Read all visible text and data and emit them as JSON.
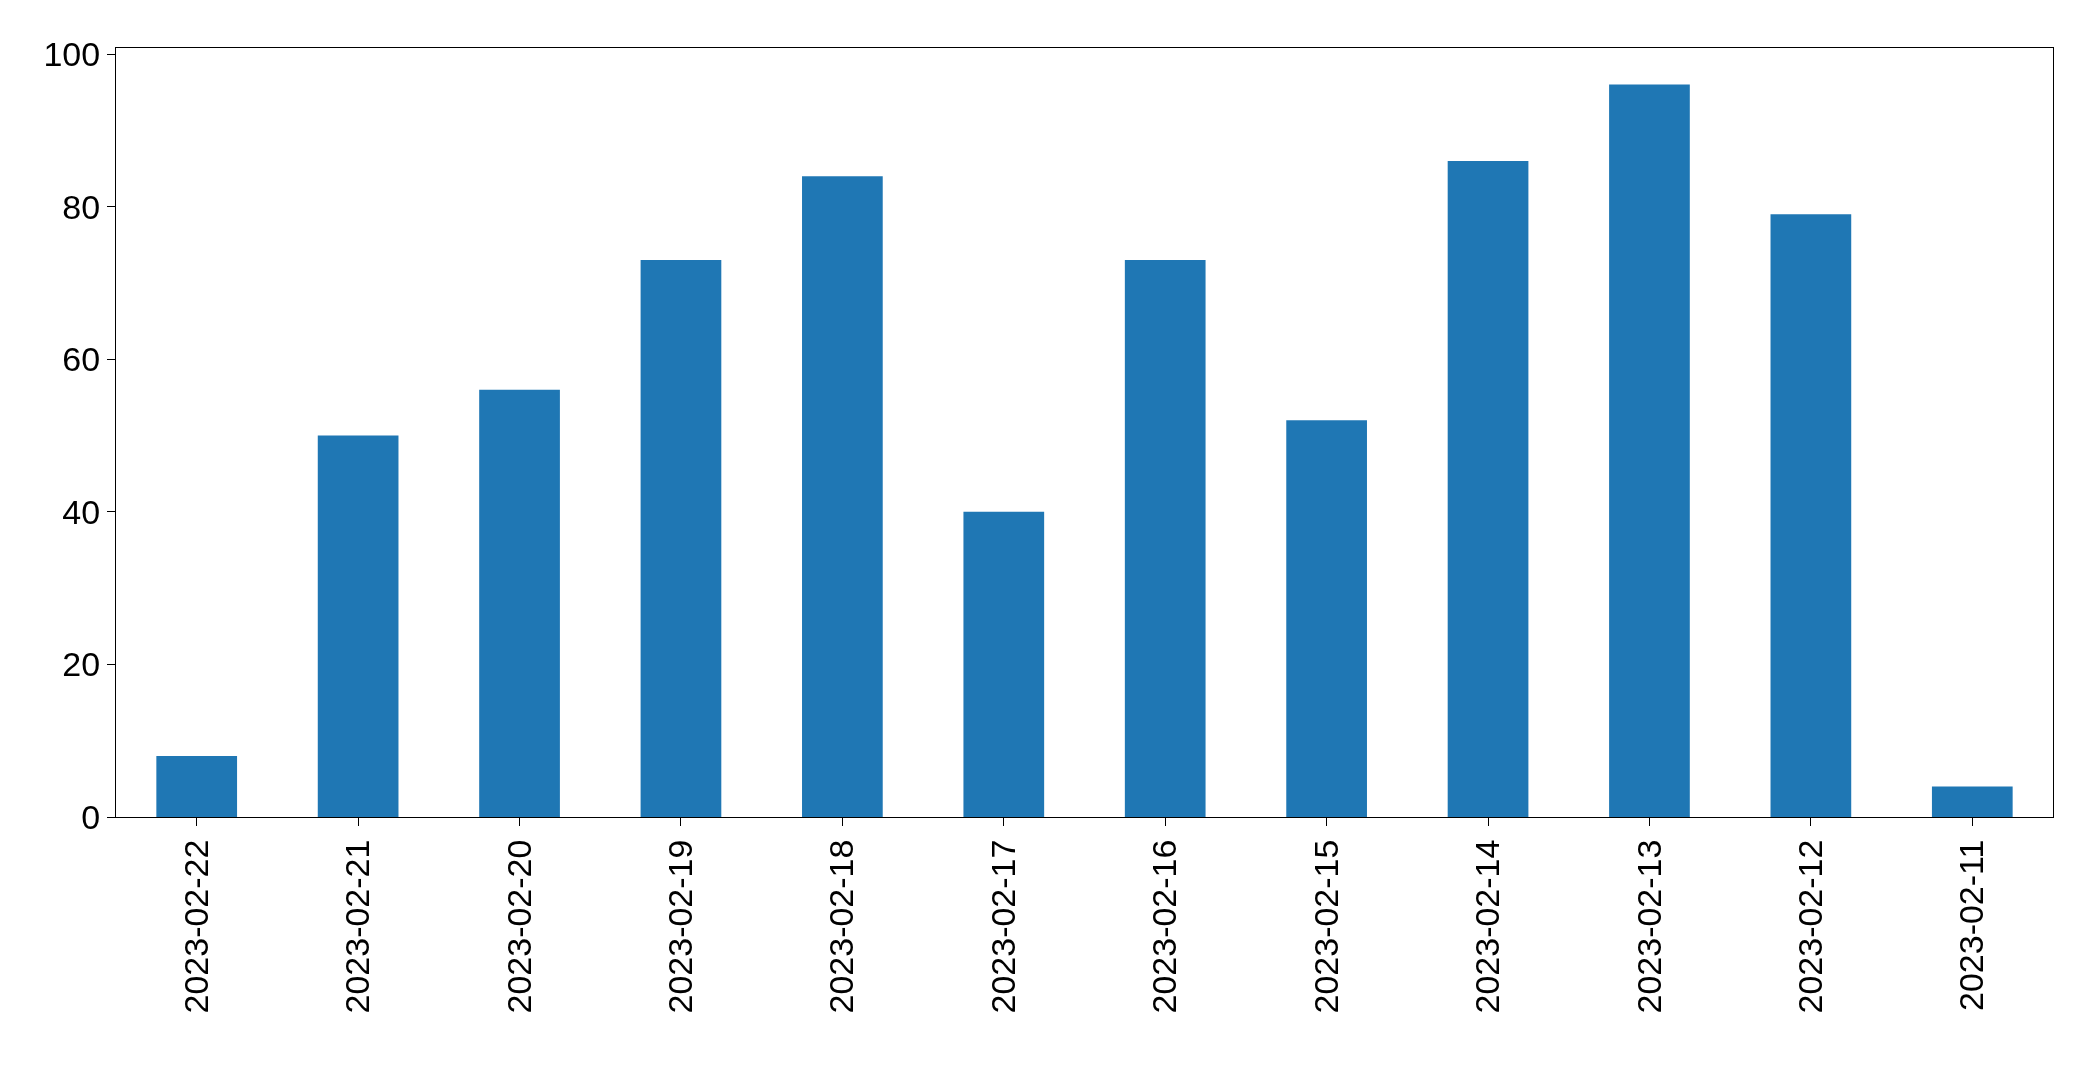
{
  "chart_data": {
    "type": "bar",
    "categories": [
      "2023-02-22",
      "2023-02-21",
      "2023-02-20",
      "2023-02-19",
      "2023-02-18",
      "2023-02-17",
      "2023-02-16",
      "2023-02-15",
      "2023-02-14",
      "2023-02-13",
      "2023-02-12",
      "2023-02-11"
    ],
    "values": [
      8,
      50,
      56,
      73,
      84,
      40,
      73,
      52,
      86,
      96,
      79,
      4
    ],
    "color": "#1f77b4",
    "ylim": [
      0,
      100.8
    ],
    "yticks": [
      0,
      20,
      40,
      60,
      80,
      100
    ]
  }
}
